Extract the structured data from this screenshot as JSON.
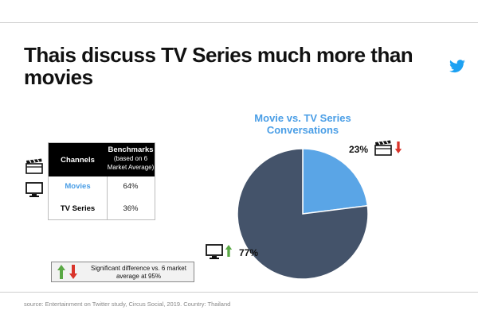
{
  "title": "Thais discuss TV Series much more than movies",
  "table": {
    "col_channels": "Channels",
    "col_benchmarks": "Benchmarks",
    "col_benchmarks_sub": "(based on 6 Market Average)",
    "rows": [
      {
        "channel": "Movies",
        "benchmark": "64%",
        "color": "#4a9ee6"
      },
      {
        "channel": "TV Series",
        "benchmark": "36%",
        "color": "#222222"
      }
    ]
  },
  "legend_note": "Significant difference vs. 6 market average at 95%",
  "source": "source: Entertainment on Twitter study, Circus Social, 2019. Country: Thailand",
  "chart_data": {
    "type": "pie",
    "title": "Movie vs. TV Series Conversations",
    "labels": [
      "Movie",
      "TV Series"
    ],
    "values": [
      23,
      77
    ],
    "value_labels": [
      "23%",
      "77%"
    ],
    "colors": [
      "#5aa5e6",
      "#44536a"
    ],
    "indicators": [
      "down",
      "up"
    ]
  },
  "colors": {
    "up_arrow": "#5aa845",
    "down_arrow": "#d9342b",
    "twitter": "#1da1f2"
  },
  "icons": [
    "twitter-icon",
    "clapperboard-icon",
    "tv-icon",
    "arrow-up-icon",
    "arrow-down-icon"
  ]
}
